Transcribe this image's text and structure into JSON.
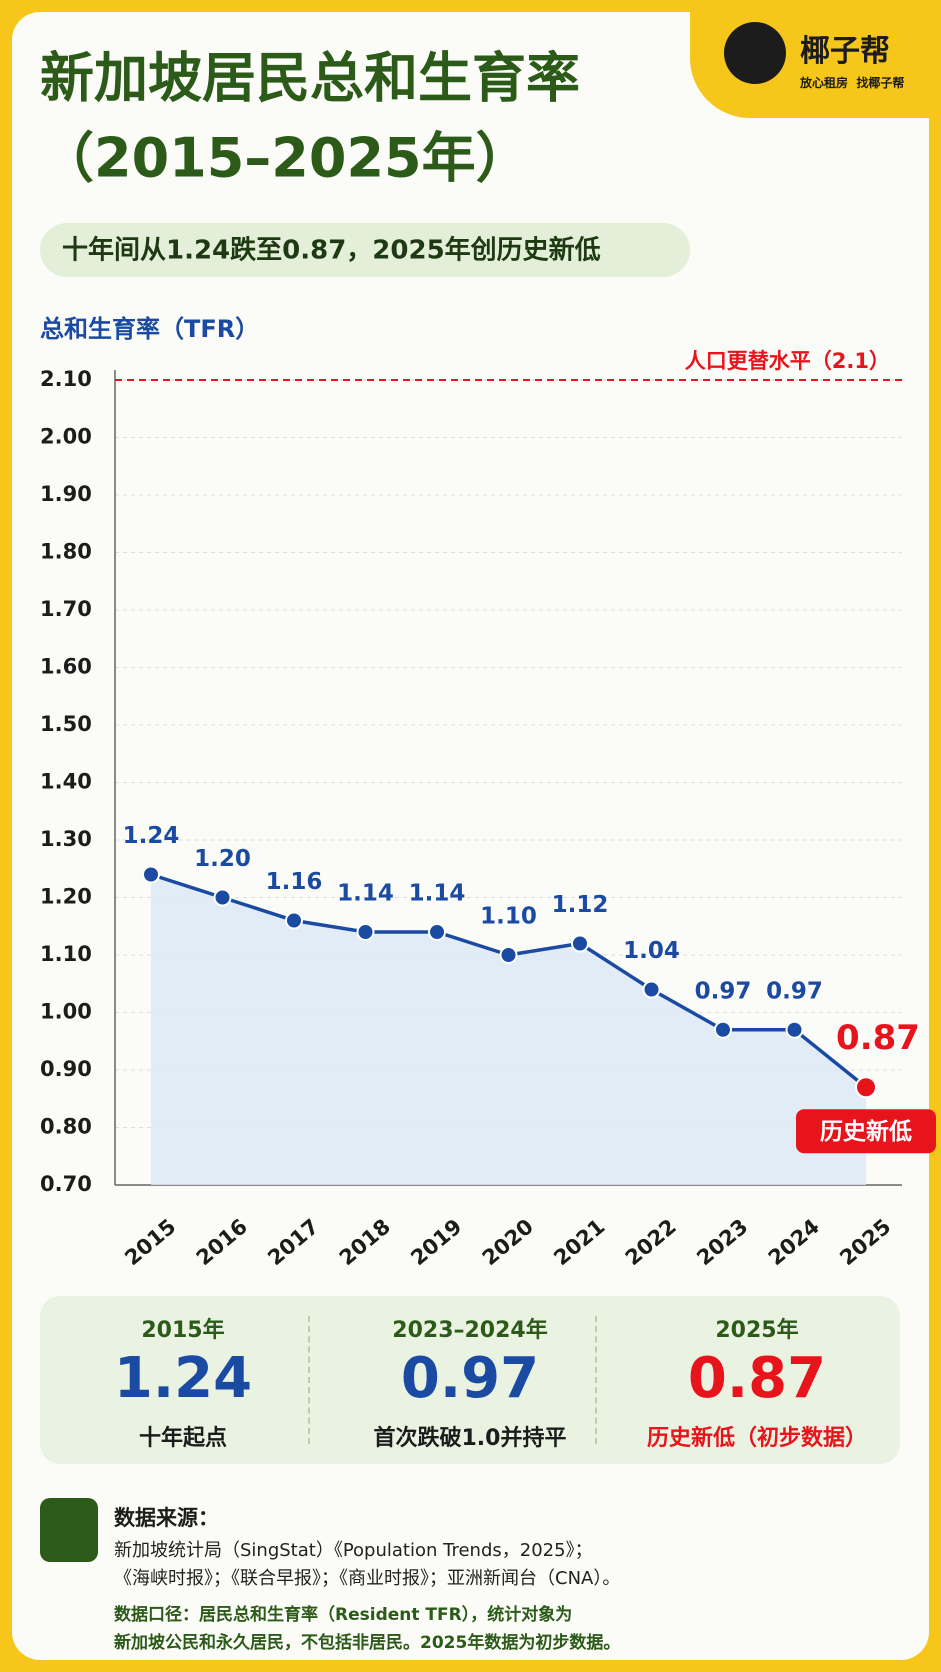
{
  "brand": {
    "name": "椰子帮",
    "slogan": "放心租房  找椰子帮"
  },
  "chart_data": {
    "type": "line",
    "title": "新加坡居民总和生育率",
    "title_line2": "（2015–2025年）",
    "subtitle": "十年间从1.24跌至0.87，2025年创历史新低",
    "y_label": "总和生育率（TFR）",
    "categories": [
      "2015",
      "2016",
      "2017",
      "2018",
      "2019",
      "2020",
      "2021",
      "2022",
      "2023",
      "2024",
      "2025"
    ],
    "values": [
      1.24,
      1.2,
      1.16,
      1.14,
      1.14,
      1.1,
      1.12,
      1.04,
      0.97,
      0.97,
      0.87
    ],
    "value_labels": [
      "1.24",
      "1.20",
      "1.16",
      "1.14",
      "1.14",
      "1.10",
      "1.12",
      "1.04",
      "0.97",
      "0.97",
      "0.87"
    ],
    "color": "#1b4aa3",
    "highlight_color": "#e8141c",
    "ylim": [
      0.7,
      2.1
    ],
    "yticks": [
      {
        "value": 0.7,
        "label": "0.70"
      },
      {
        "value": 0.8,
        "label": "0.80"
      },
      {
        "value": 0.9,
        "label": "0.90"
      },
      {
        "value": 1.0,
        "label": "1.00"
      },
      {
        "value": 1.1,
        "label": "1.10"
      },
      {
        "value": 1.2,
        "label": "1.20"
      },
      {
        "value": 1.3,
        "label": "1.30"
      },
      {
        "value": 1.4,
        "label": "1.40"
      },
      {
        "value": 1.5,
        "label": "1.50"
      },
      {
        "value": 1.6,
        "label": "1.60"
      },
      {
        "value": 1.7,
        "label": "1.70"
      },
      {
        "value": 1.8,
        "label": "1.80"
      },
      {
        "value": 1.9,
        "label": "1.90"
      },
      {
        "value": 2.0,
        "label": "2.00"
      },
      {
        "value": 2.1,
        "label": "2.10"
      }
    ],
    "grid": true,
    "reference_line": {
      "value": 2.1,
      "label": "人口更替水平（2.1）",
      "color": "#e8141c"
    },
    "annotation": "历史新低"
  },
  "summary": [
    {
      "period": "2015年",
      "value": "1.24",
      "note": "十年起点"
    },
    {
      "period": "2023–2024年",
      "value": "0.97",
      "note": "首次跌破1.0并持平"
    },
    {
      "period": "2025年",
      "value": "0.87",
      "note": "历史新低（初步数据）"
    }
  ],
  "sources": {
    "heading": "数据来源：",
    "lines": [
      "新加坡统计局（SingStat）《Population Trends，2025》；",
      "《海峡时报》；《联合早报》；《商业时报》；亚洲新闻台（CNA）。"
    ],
    "notes": [
      "数据口径：居民总和生育率（Resident TFR），统计对象为",
      "新加坡公民和永久居民，不包括非居民。2025年数据为初步数据。"
    ]
  }
}
